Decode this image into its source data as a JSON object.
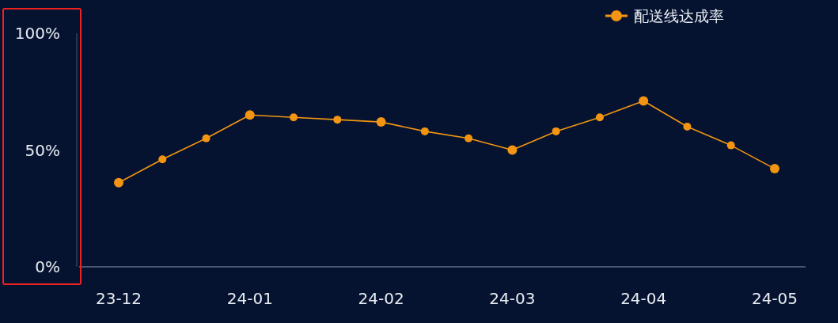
{
  "chart_data": {
    "type": "line",
    "categories": [
      "23-12",
      null,
      null,
      "24-01",
      null,
      null,
      "24-02",
      null,
      null,
      "24-03",
      null,
      null,
      "24-04",
      null,
      null,
      "24-05"
    ],
    "series": [
      {
        "name": "配送线达成率",
        "color": "#f39512",
        "values": [
          36,
          46,
          55,
          65,
          64,
          63,
          62,
          58,
          55,
          50,
          58,
          64,
          71,
          60,
          52,
          42
        ]
      }
    ],
    "ylim": [
      0,
      100
    ],
    "yticks": [
      {
        "value": 0,
        "label": "0%"
      },
      {
        "value": 50,
        "label": "50%"
      },
      {
        "value": 100,
        "label": "100%"
      }
    ],
    "marker": "circle",
    "line_style": "solid",
    "legend": "top right",
    "grid": false
  }
}
